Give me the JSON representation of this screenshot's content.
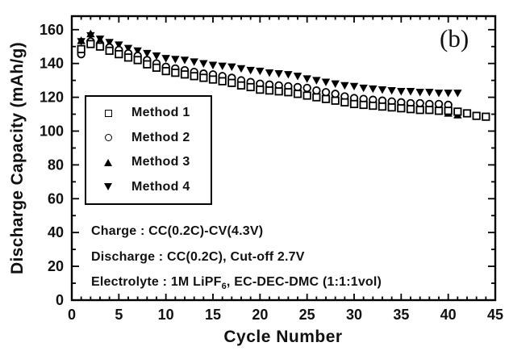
{
  "chart_data": {
    "type": "scatter",
    "panel_label": "(b)",
    "xlabel": "Cycle Number",
    "ylabel": "Discharge Capacity (mAh/g)",
    "xlim": [
      0,
      45
    ],
    "ylim": [
      0,
      168
    ],
    "xticks_major": [
      0,
      5,
      10,
      15,
      20,
      25,
      30,
      35,
      40,
      45
    ],
    "xticks_minor_step": 1,
    "yticks_major": [
      0,
      20,
      40,
      60,
      80,
      100,
      120,
      140,
      160
    ],
    "yticks_minor_step": 10,
    "grid": false,
    "legend_position": "upper-left-inside",
    "colors": {
      "foreground": "#000000",
      "background": "#ffffff"
    },
    "series": [
      {
        "name": "Method 1",
        "marker": "open-square",
        "color": "#000000",
        "x": [
          1,
          2,
          3,
          4,
          5,
          6,
          7,
          8,
          9,
          10,
          11,
          12,
          13,
          14,
          15,
          16,
          17,
          18,
          19,
          20,
          21,
          22,
          23,
          24,
          25,
          26,
          27,
          28,
          29,
          30,
          31,
          32,
          33,
          34,
          35,
          36,
          37,
          38,
          39,
          40,
          41,
          42,
          43,
          44
        ],
        "y": [
          148.5,
          151.5,
          150,
          147.5,
          145.5,
          143.5,
          142,
          139.5,
          137.5,
          135.5,
          134.5,
          133.5,
          132.5,
          131.5,
          130.5,
          129.5,
          128.5,
          127,
          126,
          124.5,
          124,
          123.5,
          123,
          122,
          121,
          120,
          119,
          118,
          117,
          116,
          115.5,
          115,
          114.5,
          114,
          113.5,
          113,
          112.5,
          112.5,
          112,
          112,
          111.5,
          110.5,
          109,
          108.5
        ]
      },
      {
        "name": "Method 2",
        "marker": "open-circle",
        "color": "#000000",
        "x": [
          1,
          2,
          3,
          4,
          5,
          6,
          7,
          8,
          9,
          10,
          11,
          12,
          13,
          14,
          15,
          16,
          17,
          18,
          19,
          20,
          21,
          22,
          23,
          24,
          25,
          26,
          27,
          28,
          29,
          30,
          31,
          32,
          33,
          34,
          35,
          36,
          37,
          38,
          39,
          40
        ],
        "y": [
          145.5,
          153,
          151,
          149.5,
          148,
          146,
          144.5,
          142,
          140,
          138,
          137,
          136,
          135,
          134,
          133.5,
          132.5,
          131.5,
          130,
          129,
          128,
          127.5,
          127,
          126.5,
          126,
          125.5,
          124,
          123,
          122,
          120.5,
          119.5,
          119,
          118.5,
          118,
          117.5,
          117,
          116.5,
          116.5,
          116,
          116,
          115.5
        ]
      },
      {
        "name": "Method 3",
        "marker": "filled-triangle-up",
        "color": "#000000",
        "x": [
          1,
          2,
          3,
          4,
          5,
          6,
          7,
          8,
          9,
          10,
          11,
          12,
          13,
          14,
          15,
          16,
          17,
          18,
          19,
          20,
          21,
          22,
          23,
          24,
          25,
          26,
          27,
          28,
          29,
          30,
          31,
          32,
          33,
          34,
          35,
          36,
          37,
          38,
          39,
          40,
          41
        ],
        "y": [
          153.5,
          157.5,
          154,
          151.5,
          149.5,
          147,
          145.5,
          142.5,
          139.5,
          137,
          136,
          135,
          134,
          133,
          132,
          131,
          130,
          128.5,
          127.5,
          126,
          125.5,
          125,
          124.5,
          123.5,
          122.5,
          121.5,
          120.5,
          119.5,
          118.5,
          117.5,
          116.5,
          116,
          115.5,
          115,
          114.5,
          114,
          113.5,
          113,
          112,
          110.5,
          109.5
        ]
      },
      {
        "name": "Method 4",
        "marker": "filled-triangle-down",
        "color": "#000000",
        "x": [
          1,
          2,
          3,
          4,
          5,
          6,
          7,
          8,
          9,
          10,
          11,
          12,
          13,
          14,
          15,
          16,
          17,
          18,
          19,
          20,
          21,
          22,
          23,
          24,
          25,
          26,
          27,
          28,
          29,
          30,
          31,
          32,
          33,
          34,
          35,
          36,
          37,
          38,
          39,
          40,
          41
        ],
        "y": [
          153,
          156.5,
          154.5,
          152.5,
          151,
          149,
          147.5,
          146,
          144.5,
          143,
          142.5,
          142,
          141,
          140,
          139,
          138.5,
          138,
          137,
          136,
          135.5,
          134.5,
          134,
          133.5,
          132.5,
          131,
          130,
          129,
          128,
          127,
          126.5,
          125.5,
          125,
          124.5,
          124,
          123.5,
          123.5,
          123,
          123,
          122.5,
          122.5,
          122.5
        ]
      }
    ],
    "annotations": [
      {
        "text": "Charge : CC(0.2C)-CV(4.3V)"
      },
      {
        "text": "Discharge : CC(0.2C), Cut-off 2.7V"
      },
      {
        "pre": "Electrolyte : 1M LiPF",
        "sub": "6",
        "post": ", EC-DEC-DMC (1:1:1vol)"
      }
    ]
  }
}
